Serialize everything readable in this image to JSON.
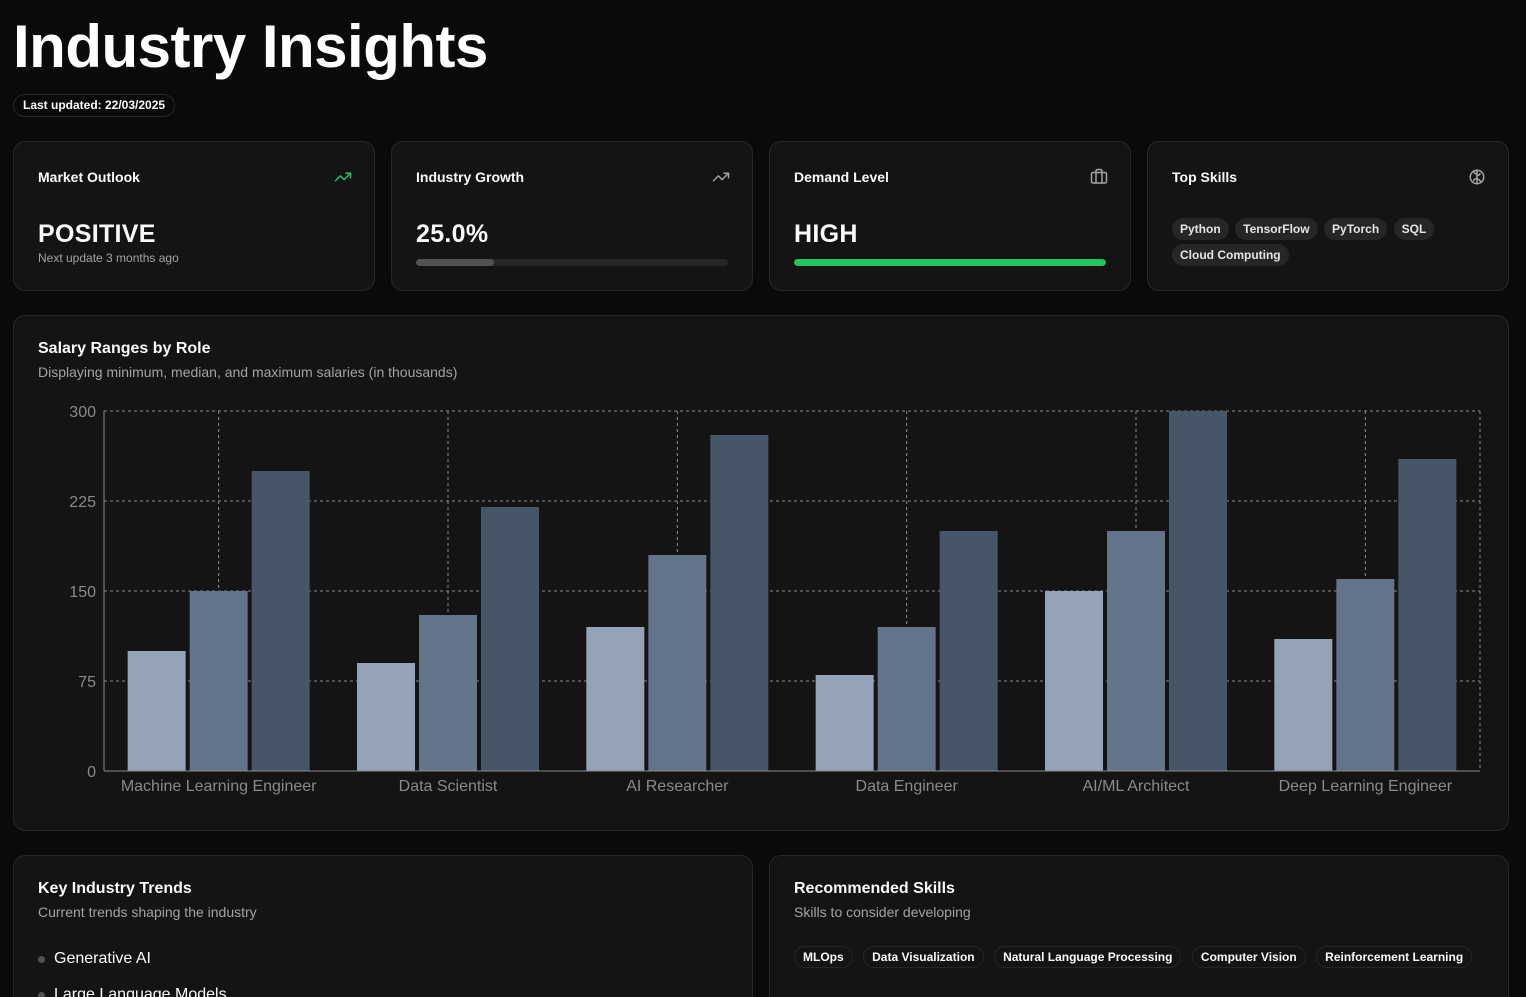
{
  "header": {
    "title": "Industry Insights",
    "last_updated": "Last updated: 22/03/2025"
  },
  "stats": {
    "market_outlook": {
      "title": "Market Outlook",
      "value": "POSITIVE",
      "sub": "Next update 3 months ago",
      "icon": "trending-up-icon",
      "icon_color": "#22c55e"
    },
    "industry_growth": {
      "title": "Industry Growth",
      "value": "25.0%",
      "progress": 0.25,
      "icon": "trending-up-icon"
    },
    "demand_level": {
      "title": "Demand Level",
      "value": "HIGH",
      "progress": 1.0,
      "bar_color": "#22c55e",
      "icon": "briefcase-icon"
    },
    "top_skills": {
      "title": "Top Skills",
      "icon": "brain-icon",
      "skills": [
        "Python",
        "TensorFlow",
        "PyTorch",
        "SQL",
        "Cloud Computing"
      ]
    }
  },
  "salary": {
    "title": "Salary Ranges by Role",
    "description": "Displaying minimum, median, and maximum salaries (in thousands)"
  },
  "chart_data": {
    "type": "bar",
    "categories": [
      "Machine Learning Engineer",
      "Data Scientist",
      "AI Researcher",
      "Data Engineer",
      "AI/ML Architect",
      "Deep Learning Engineer"
    ],
    "series": [
      {
        "values": [
          100,
          90,
          120,
          80,
          150,
          110
        ],
        "color": "#94a3b8"
      },
      {
        "values": [
          150,
          130,
          180,
          120,
          200,
          160
        ],
        "color": "#64748b"
      },
      {
        "values": [
          250,
          220,
          280,
          200,
          300,
          260
        ],
        "color": "#475569"
      }
    ],
    "ylim": [
      0,
      300
    ],
    "yticks": [
      0,
      75,
      150,
      225,
      300
    ],
    "grid": true
  },
  "trends": {
    "title": "Key Industry Trends",
    "description": "Current trends shaping the industry",
    "items": [
      "Generative AI",
      "Large Language Models"
    ]
  },
  "recommended": {
    "title": "Recommended Skills",
    "description": "Skills to consider developing",
    "skills": [
      "MLOps",
      "Data Visualization",
      "Natural Language Processing",
      "Computer Vision",
      "Reinforcement Learning"
    ]
  }
}
